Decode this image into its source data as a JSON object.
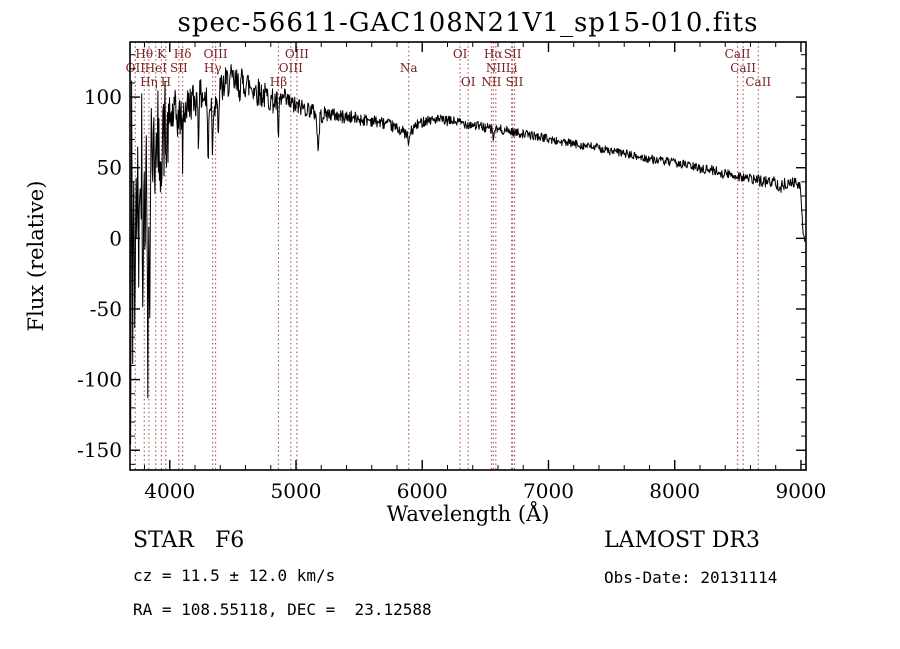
{
  "title": "spec-56611-GAC108N21V1_sp15-010.fits",
  "footer": {
    "class_label": "STAR   F6",
    "survey": "LAMOST DR3",
    "cz": "cz = 11.5 ± 12.0 km/s",
    "obs_date": "Obs-Date: 20131114",
    "ra_dec": "RA = 108.55118, DEC =  23.12588"
  },
  "chart_data": {
    "type": "line",
    "title": "spec-56611-GAC108N21V1_sp15-010.fits",
    "xlabel": "Wavelength (Å)",
    "ylabel": "Flux (relative)",
    "xlim": [
      3685,
      9040
    ],
    "ylim": [
      -164,
      139
    ],
    "xticks": [
      4000,
      5000,
      6000,
      7000,
      8000,
      9000
    ],
    "yticks": [
      -150,
      -100,
      -50,
      0,
      50,
      100
    ],
    "grid": false,
    "legend": "none",
    "line_color": "#000000",
    "marker_color": "#b05050",
    "label_color": "#7b2020",
    "noise_seed": 42,
    "spectral_lines": [
      {
        "wavelength": 3727,
        "label": "OII",
        "row": 1
      },
      {
        "wavelength": 3798,
        "label": "Hθ",
        "row": 0
      },
      {
        "wavelength": 3835,
        "label": "Hη",
        "row": 2
      },
      {
        "wavelength": 3889,
        "label": "HeI",
        "row": 1
      },
      {
        "wavelength": 3934,
        "label": "K",
        "row": 0
      },
      {
        "wavelength": 3969,
        "label": "H",
        "row": 2
      },
      {
        "wavelength": 4072,
        "label": "SII",
        "row": 1
      },
      {
        "wavelength": 4102,
        "label": "Hδ",
        "row": 0
      },
      {
        "wavelength": 4340,
        "label": "Hγ",
        "row": 1
      },
      {
        "wavelength": 4363,
        "label": "OIII",
        "row": 0
      },
      {
        "wavelength": 4861,
        "label": "Hβ",
        "row": 2
      },
      {
        "wavelength": 4959,
        "label": "OIII",
        "row": 1
      },
      {
        "wavelength": 5007,
        "label": "OIII",
        "row": 0
      },
      {
        "wavelength": 5893,
        "label": "Na",
        "row": 1
      },
      {
        "wavelength": 6300,
        "label": "OI",
        "row": 0
      },
      {
        "wavelength": 6364,
        "label": "OI",
        "row": 2
      },
      {
        "wavelength": 6548,
        "label": "NII",
        "row": 2
      },
      {
        "wavelength": 6563,
        "label": "Hα",
        "row": 0
      },
      {
        "wavelength": 6583,
        "label": "NII",
        "row": 1
      },
      {
        "wavelength": 6708,
        "label": "Li",
        "row": 1
      },
      {
        "wavelength": 6716,
        "label": "SII",
        "row": 0
      },
      {
        "wavelength": 6731,
        "label": "SII",
        "row": 2
      },
      {
        "wavelength": 8498,
        "label": "CaII",
        "row": 0
      },
      {
        "wavelength": 8542,
        "label": "CaII",
        "row": 1
      },
      {
        "wavelength": 8662,
        "label": "CaII",
        "row": 2
      }
    ],
    "continuum": [
      [
        3690,
        -155
      ],
      [
        3698,
        80
      ],
      [
        3706,
        -60
      ],
      [
        3714,
        60
      ],
      [
        3722,
        -95
      ],
      [
        3730,
        40
      ],
      [
        3738,
        -20
      ],
      [
        3746,
        90
      ],
      [
        3754,
        -50
      ],
      [
        3762,
        70
      ],
      [
        3770,
        5
      ],
      [
        3778,
        95
      ],
      [
        3786,
        -30
      ],
      [
        3794,
        60
      ],
      [
        3802,
        -10
      ],
      [
        3810,
        75
      ],
      [
        3818,
        20
      ],
      [
        3826,
        -100
      ],
      [
        3834,
        40
      ],
      [
        3842,
        -60
      ],
      [
        3850,
        70
      ],
      [
        3858,
        95
      ],
      [
        3866,
        25
      ],
      [
        3874,
        85
      ],
      [
        3882,
        45
      ],
      [
        3890,
        90
      ],
      [
        3898,
        40
      ],
      [
        3906,
        80
      ],
      [
        3914,
        60
      ],
      [
        3922,
        30
      ],
      [
        3930,
        75
      ],
      [
        3938,
        50
      ],
      [
        3946,
        85
      ],
      [
        3954,
        65
      ],
      [
        3962,
        90
      ],
      [
        3970,
        50
      ],
      [
        3978,
        80
      ],
      [
        3986,
        70
      ],
      [
        4000,
        85
      ],
      [
        4040,
        88
      ],
      [
        4070,
        84
      ],
      [
        4094,
        88
      ],
      [
        4102,
        55
      ],
      [
        4110,
        90
      ],
      [
        4140,
        94
      ],
      [
        4180,
        98
      ],
      [
        4222,
        98
      ],
      [
        4227,
        60
      ],
      [
        4232,
        99
      ],
      [
        4260,
        102
      ],
      [
        4296,
        96
      ],
      [
        4304,
        42
      ],
      [
        4312,
        96
      ],
      [
        4332,
        95
      ],
      [
        4340,
        58
      ],
      [
        4348,
        97
      ],
      [
        4376,
        100
      ],
      [
        4384,
        55
      ],
      [
        4392,
        104
      ],
      [
        4430,
        108
      ],
      [
        4470,
        112
      ],
      [
        4510,
        110
      ],
      [
        4550,
        108
      ],
      [
        4590,
        111
      ],
      [
        4630,
        108
      ],
      [
        4670,
        106
      ],
      [
        4710,
        103
      ],
      [
        4750,
        101
      ],
      [
        4790,
        99
      ],
      [
        4820,
        97
      ],
      [
        4853,
        96
      ],
      [
        4861,
        62
      ],
      [
        4869,
        97
      ],
      [
        4905,
        99
      ],
      [
        4930,
        97
      ],
      [
        4959,
        95
      ],
      [
        4985,
        94
      ],
      [
        5007,
        93
      ],
      [
        5040,
        93
      ],
      [
        5080,
        92
      ],
      [
        5120,
        91
      ],
      [
        5160,
        88
      ],
      [
        5175,
        60
      ],
      [
        5190,
        86
      ],
      [
        5230,
        88
      ],
      [
        5270,
        88
      ],
      [
        5320,
        87
      ],
      [
        5370,
        86
      ],
      [
        5420,
        86
      ],
      [
        5470,
        85
      ],
      [
        5520,
        84
      ],
      [
        5570,
        84
      ],
      [
        5620,
        83
      ],
      [
        5670,
        82
      ],
      [
        5720,
        81
      ],
      [
        5770,
        79
      ],
      [
        5820,
        77
      ],
      [
        5860,
        75
      ],
      [
        5885,
        72
      ],
      [
        5893,
        64
      ],
      [
        5901,
        74
      ],
      [
        5940,
        79
      ],
      [
        5990,
        82
      ],
      [
        6040,
        84
      ],
      [
        6090,
        84
      ],
      [
        6140,
        84
      ],
      [
        6190,
        83
      ],
      [
        6240,
        83
      ],
      [
        6300,
        82
      ],
      [
        6364,
        81
      ],
      [
        6420,
        80
      ],
      [
        6470,
        79
      ],
      [
        6520,
        78
      ],
      [
        6555,
        77
      ],
      [
        6563,
        68
      ],
      [
        6571,
        77
      ],
      [
        6620,
        77
      ],
      [
        6680,
        76
      ],
      [
        6740,
        75
      ],
      [
        6800,
        74
      ],
      [
        6860,
        73
      ],
      [
        6920,
        72
      ],
      [
        6980,
        71
      ],
      [
        7050,
        69
      ],
      [
        7120,
        68
      ],
      [
        7190,
        67
      ],
      [
        7260,
        66
      ],
      [
        7330,
        65
      ],
      [
        7400,
        64
      ],
      [
        7470,
        62
      ],
      [
        7540,
        61
      ],
      [
        7610,
        60
      ],
      [
        7680,
        58
      ],
      [
        7750,
        57
      ],
      [
        7820,
        56
      ],
      [
        7890,
        55
      ],
      [
        7960,
        54
      ],
      [
        8030,
        53
      ],
      [
        8100,
        52
      ],
      [
        8170,
        50
      ],
      [
        8240,
        49
      ],
      [
        8310,
        48
      ],
      [
        8380,
        46
      ],
      [
        8450,
        45
      ],
      [
        8520,
        44
      ],
      [
        8590,
        42
      ],
      [
        8660,
        41
      ],
      [
        8730,
        40
      ],
      [
        8800,
        40
      ],
      [
        8840,
        36
      ],
      [
        8880,
        39
      ],
      [
        8920,
        40
      ],
      [
        8960,
        39
      ],
      [
        8990,
        37
      ],
      [
        9000,
        30
      ],
      [
        9008,
        18
      ],
      [
        9016,
        6
      ],
      [
        9024,
        0
      ],
      [
        9030,
        -2
      ]
    ],
    "noise_envelope": [
      [
        3690,
        45
      ],
      [
        3780,
        40
      ],
      [
        3860,
        32
      ],
      [
        3940,
        26
      ],
      [
        4000,
        20
      ],
      [
        4080,
        15
      ],
      [
        4160,
        13
      ],
      [
        4260,
        12
      ],
      [
        4380,
        12
      ],
      [
        4500,
        12
      ],
      [
        4650,
        11
      ],
      [
        4800,
        9
      ],
      [
        4950,
        7
      ],
      [
        5100,
        6
      ],
      [
        5300,
        5
      ],
      [
        5500,
        4.5
      ],
      [
        5700,
        4
      ],
      [
        5900,
        4
      ],
      [
        6100,
        3.5
      ],
      [
        6300,
        3.5
      ],
      [
        6563,
        3.5
      ],
      [
        6800,
        3
      ],
      [
        7200,
        3
      ],
      [
        7600,
        3
      ],
      [
        8000,
        3
      ],
      [
        8300,
        3.5
      ],
      [
        8600,
        4
      ],
      [
        8850,
        4.5
      ],
      [
        9000,
        3
      ],
      [
        9030,
        2
      ]
    ]
  }
}
